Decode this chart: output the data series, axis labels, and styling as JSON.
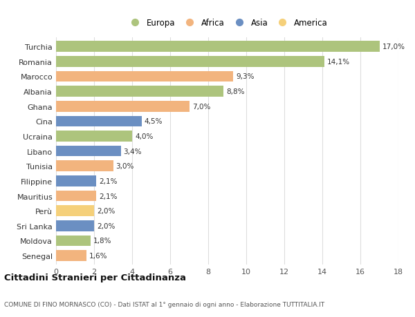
{
  "countries": [
    "Turchia",
    "Romania",
    "Marocco",
    "Albania",
    "Ghana",
    "Cina",
    "Ucraina",
    "Libano",
    "Tunisia",
    "Filippine",
    "Mauritius",
    "Perù",
    "Sri Lanka",
    "Moldova",
    "Senegal"
  ],
  "values": [
    17.0,
    14.1,
    9.3,
    8.8,
    7.0,
    4.5,
    4.0,
    3.4,
    3.0,
    2.1,
    2.1,
    2.0,
    2.0,
    1.8,
    1.6
  ],
  "labels": [
    "17,0%",
    "14,1%",
    "9,3%",
    "8,8%",
    "7,0%",
    "4,5%",
    "4,0%",
    "3,4%",
    "3,0%",
    "2,1%",
    "2,1%",
    "2,0%",
    "2,0%",
    "1,8%",
    "1,6%"
  ],
  "continents": [
    "Europa",
    "Europa",
    "Africa",
    "Europa",
    "Africa",
    "Asia",
    "Europa",
    "Asia",
    "Africa",
    "Asia",
    "Africa",
    "America",
    "Asia",
    "Europa",
    "Africa"
  ],
  "continent_colors": {
    "Europa": "#adc47d",
    "Africa": "#f2b47e",
    "Asia": "#6b8fc2",
    "America": "#f5d07a"
  },
  "legend_order": [
    "Europa",
    "Africa",
    "Asia",
    "America"
  ],
  "title": "Cittadini Stranieri per Cittadinanza",
  "subtitle": "COMUNE DI FINO MORNASCO (CO) - Dati ISTAT al 1° gennaio di ogni anno - Elaborazione TUTTITALIA.IT",
  "xlim": [
    0,
    18
  ],
  "xticks": [
    0,
    2,
    4,
    6,
    8,
    10,
    12,
    14,
    16,
    18
  ],
  "background_color": "#ffffff",
  "grid_color": "#dddddd",
  "bar_height": 0.72
}
